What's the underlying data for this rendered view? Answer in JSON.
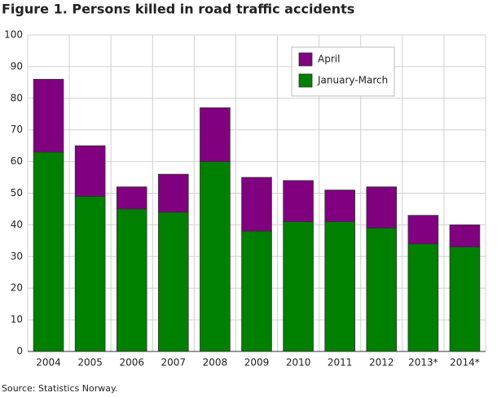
{
  "chart_data": {
    "type": "stacked-bar",
    "title": "Figure 1. Persons killed in road traffic accidents",
    "source": "Source: Statistics Norway.",
    "categories": [
      "2004",
      "2005",
      "2006",
      "2007",
      "2008",
      "2009",
      "2010",
      "2011",
      "2012",
      "2013*",
      "2014*"
    ],
    "series": [
      {
        "name": "January-March",
        "color": "#008000",
        "values": [
          63,
          49,
          45,
          44,
          60,
          38,
          41,
          41,
          39,
          34,
          33
        ]
      },
      {
        "name": "April",
        "color": "#800080",
        "values": [
          23,
          16,
          7,
          12,
          17,
          17,
          13,
          10,
          13,
          9,
          7
        ]
      }
    ],
    "ylim": [
      0,
      100
    ],
    "yticks": [
      0,
      10,
      20,
      30,
      40,
      50,
      60,
      70,
      80,
      90,
      100
    ],
    "grid": true
  }
}
